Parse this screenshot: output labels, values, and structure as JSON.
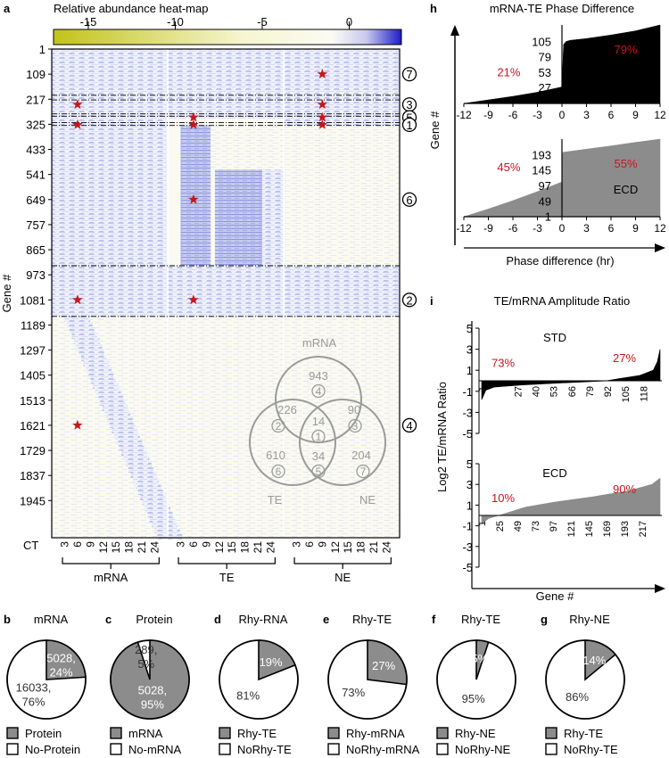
{
  "panel_a": {
    "letter": "a",
    "colorbar_title": "Relative abundance heat-map",
    "colorbar_ticks": [
      {
        "label": "-15",
        "value": -15
      },
      {
        "label": "-10",
        "value": -10
      },
      {
        "label": "-5",
        "value": -5
      },
      {
        "label": "0",
        "value": 0
      }
    ],
    "colorbar_range": [
      -17,
      3
    ],
    "ylabel": "Gene #",
    "y_range": [
      1,
      2105
    ],
    "yticks": [
      "1",
      "109",
      "217",
      "325",
      "433",
      "541",
      "649",
      "757",
      "865",
      "973",
      "1081",
      "1189",
      "1297",
      "1405",
      "1513",
      "1621",
      "1729",
      "1837",
      "1945"
    ],
    "ct_label": "CT",
    "ct_ticks": [
      "3",
      "6",
      "9",
      "12",
      "15",
      "18",
      "21",
      "24"
    ],
    "groups": [
      "mRNA",
      "TE",
      "NE"
    ],
    "cluster_rows": [
      {
        "label": "7",
        "gene": 109
      },
      {
        "label": "3",
        "gene": 240
      },
      {
        "label": "5",
        "gene": 295
      },
      {
        "label": "1",
        "gene": 327
      },
      {
        "label": "6",
        "gene": 649
      },
      {
        "label": "2",
        "gene": 1081
      },
      {
        "label": "4",
        "gene": 1621
      }
    ],
    "cluster_boundaries": [
      200,
      220,
      280,
      290,
      318,
      330,
      934,
      1152
    ],
    "stars": [
      {
        "group": 2,
        "ct": 9,
        "gene": 109
      },
      {
        "group": 0,
        "ct": 6,
        "gene": 240
      },
      {
        "group": 2,
        "ct": 9,
        "gene": 240
      },
      {
        "group": 1,
        "ct": 6,
        "gene": 295
      },
      {
        "group": 2,
        "ct": 9,
        "gene": 295
      },
      {
        "group": 0,
        "ct": 6,
        "gene": 327
      },
      {
        "group": 1,
        "ct": 6,
        "gene": 327
      },
      {
        "group": 2,
        "ct": 9,
        "gene": 327
      },
      {
        "group": 1,
        "ct": 6,
        "gene": 649
      },
      {
        "group": 0,
        "ct": 6,
        "gene": 1081
      },
      {
        "group": 1,
        "ct": 6,
        "gene": 1081
      },
      {
        "group": 0,
        "ct": 6,
        "gene": 1621
      }
    ],
    "venn": {
      "labels": {
        "mrna": "mRNA",
        "te": "TE",
        "ne": "NE"
      },
      "regions": [
        {
          "count": "943",
          "cluster": "4"
        },
        {
          "count": "226",
          "cluster": "2"
        },
        {
          "count": "90",
          "cluster": "3"
        },
        {
          "count": "14",
          "cluster": "1"
        },
        {
          "count": "610",
          "cluster": "6"
        },
        {
          "count": "34",
          "cluster": "5"
        },
        {
          "count": "204",
          "cluster": "7"
        }
      ]
    }
  },
  "panel_h": {
    "letter": "h",
    "title": "mRNA-TE Phase Difference",
    "ylabel": "Gene #",
    "xlabel": "Phase difference (hr)",
    "xticks": [
      "-12",
      "-9",
      "-6",
      "-3",
      "0",
      "3",
      "6",
      "9",
      "12"
    ],
    "x_range": [
      -12,
      12
    ],
    "std": {
      "label": "STD",
      "n": 133,
      "yticks": [
        "27",
        "53",
        "79",
        "105"
      ],
      "neg_pct": "21%",
      "pos_pct": "79%",
      "neg_count": 28,
      "neg_curve": [
        [
          -12,
          0
        ],
        [
          -9,
          6
        ],
        [
          -6,
          12
        ],
        [
          -3,
          19
        ],
        [
          0,
          28
        ]
      ],
      "pos_curve": [
        [
          0,
          28
        ],
        [
          0.2,
          100
        ],
        [
          0.5,
          105
        ],
        [
          1,
          107
        ],
        [
          3,
          110
        ],
        [
          6,
          116
        ],
        [
          9,
          123
        ],
        [
          12,
          133
        ]
      ]
    },
    "ecd": {
      "label": "ECD",
      "n": 241,
      "yticks": [
        "1",
        "49",
        "97",
        "145",
        "193"
      ],
      "neg_pct": "45%",
      "pos_pct": "55%",
      "neg_count": 108,
      "neg_curve": [
        [
          -12,
          0
        ],
        [
          -9,
          24
        ],
        [
          -6,
          50
        ],
        [
          -3,
          78
        ],
        [
          0,
          108
        ]
      ],
      "pos_curve": [
        [
          0,
          108
        ],
        [
          0.1,
          200
        ],
        [
          3,
          210
        ],
        [
          6,
          220
        ],
        [
          9,
          231
        ],
        [
          12,
          241
        ]
      ]
    }
  },
  "panel_i": {
    "letter": "i",
    "title": "TE/mRNA Amplitude Ratio",
    "ylabel": "Log2 TE/mRNA Ratio",
    "xlabel": "Gene #",
    "yticks": [
      "-5",
      "-3",
      "-1",
      "1",
      "3",
      "5"
    ],
    "y_range": [
      -5,
      5
    ],
    "std": {
      "label": "STD",
      "n": 130,
      "xticks": [
        "1",
        "27",
        "40",
        "53",
        "66",
        "79",
        "92",
        "105",
        "118"
      ],
      "neg_pct": "73%",
      "pos_pct": "27%",
      "curve": [
        [
          1,
          -1.8
        ],
        [
          4,
          -0.9
        ],
        [
          10,
          -0.6
        ],
        [
          30,
          -0.4
        ],
        [
          60,
          -0.2
        ],
        [
          90,
          -0.02
        ],
        [
          100,
          0.2
        ],
        [
          115,
          0.5
        ],
        [
          125,
          1.0
        ],
        [
          128,
          1.8
        ],
        [
          130,
          3.0
        ]
      ]
    },
    "ecd": {
      "label": "ECD",
      "n": 241,
      "xticks": [
        "1",
        "25",
        "49",
        "73",
        "97",
        "121",
        "145",
        "169",
        "193",
        "217"
      ],
      "neg_pct": "10%",
      "pos_pct": "90%",
      "curve": [
        [
          1,
          -0.8
        ],
        [
          10,
          -0.3
        ],
        [
          24,
          0.0
        ],
        [
          60,
          0.8
        ],
        [
          100,
          1.3
        ],
        [
          150,
          1.8
        ],
        [
          200,
          2.4
        ],
        [
          230,
          3.0
        ],
        [
          241,
          3.6
        ]
      ]
    }
  },
  "pies": [
    {
      "letter": "b",
      "title": "mRNA",
      "slices": [
        {
          "value": 24,
          "label1": "5028,",
          "label2": "24%"
        },
        {
          "value": 76,
          "label1": "16033,",
          "label2": "76%"
        }
      ],
      "legend": [
        "Protein",
        "No-Protein"
      ]
    },
    {
      "letter": "c",
      "title": "Protein",
      "slices": [
        {
          "value": 95,
          "label1": "5028,",
          "label2": "95%"
        },
        {
          "value": 5,
          "label1": "289,",
          "label2": "5%"
        }
      ],
      "legend": [
        "mRNA",
        "No-mRNA"
      ]
    },
    {
      "letter": "d",
      "title": "Rhy-RNA",
      "slices": [
        {
          "value": 19,
          "label1": "19%",
          "label2": ""
        },
        {
          "value": 81,
          "label1": "81%",
          "label2": ""
        }
      ],
      "legend": [
        "Rhy-TE",
        "NoRhy-TE"
      ]
    },
    {
      "letter": "e",
      "title": "Rhy-TE",
      "slices": [
        {
          "value": 27,
          "label1": "27%",
          "label2": ""
        },
        {
          "value": 73,
          "label1": "73%",
          "label2": ""
        }
      ],
      "legend": [
        "Rhy-mRNA",
        "NoRhy-mRNA"
      ]
    },
    {
      "letter": "f",
      "title": "Rhy-TE",
      "slices": [
        {
          "value": 5,
          "label1": "5%",
          "label2": ""
        },
        {
          "value": 95,
          "label1": "95%",
          "label2": ""
        }
      ],
      "legend": [
        "Rhy-NE",
        "NoRhy-NE"
      ]
    },
    {
      "letter": "g",
      "title": "Rhy-NE",
      "slices": [
        {
          "value": 14,
          "label1": "14%",
          "label2": ""
        },
        {
          "value": 86,
          "label1": "86%",
          "label2": ""
        }
      ],
      "legend": [
        "Rhy-TE",
        "NoRhy-TE"
      ]
    }
  ],
  "colors": {
    "gray": "#8c8c8c",
    "red": "#c8161d",
    "venn": "#9a9a9a",
    "heat_low": "#c2c21a",
    "heat_mid": "#fdfdf0",
    "heat_high": "#1c1cc8"
  }
}
